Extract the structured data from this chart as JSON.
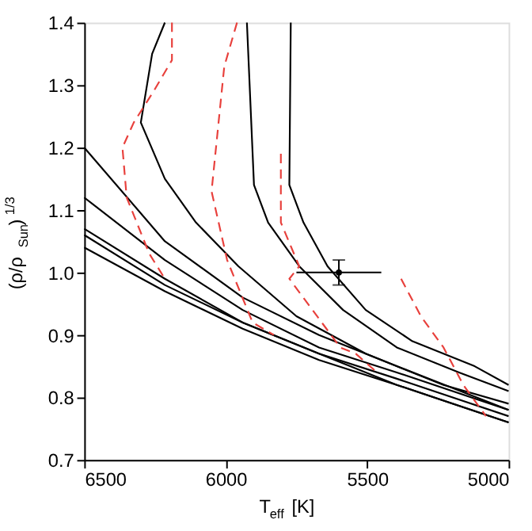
{
  "chart_data": {
    "type": "line",
    "xlabel": "T$_{eff}$ [K]",
    "ylabel": "(ρ/ρ$_{Sun}$)$^{1/3}$",
    "xlim": [
      6500,
      5000
    ],
    "ylim": [
      0.7,
      1.4
    ],
    "xticks": [
      6500,
      6000,
      5500,
      5000
    ],
    "yticks": [
      0.7,
      0.8,
      0.9,
      {
        "value": 1.0,
        "label": "1.0"
      },
      1.1,
      1.2,
      1.3,
      1.4
    ],
    "grid": false,
    "series": [
      {
        "color": "#000000",
        "line_style": "solid",
        "x": [
          6215,
          6260,
          6300,
          6215,
          6105,
          5955,
          5750,
          5505,
          5230,
          5000
        ],
        "values": [
          1.4,
          1.35,
          1.24,
          1.15,
          1.08,
          1.01,
          0.93,
          0.87,
          0.82,
          0.79
        ]
      },
      {
        "color": "#000000",
        "line_style": "solid",
        "x": [
          5925,
          5900,
          5850,
          5740,
          5585,
          5395,
          5175,
          5000
        ],
        "values": [
          1.4,
          1.14,
          1.08,
          1.01,
          0.94,
          0.88,
          0.84,
          0.81
        ]
      },
      {
        "color": "#000000",
        "line_style": "solid",
        "x": [
          5770,
          5775,
          5725,
          5640,
          5505,
          5340,
          5120,
          5000
        ],
        "values": [
          1.4,
          1.14,
          1.08,
          1.01,
          0.94,
          0.89,
          0.85,
          0.82
        ]
      },
      {
        "color": "#000000",
        "line_style": "solid",
        "x": [
          6500,
          6215,
          5940,
          5670,
          5395,
          5000
        ],
        "values": [
          1.2,
          1.05,
          0.96,
          0.9,
          0.85,
          0.78
        ]
      },
      {
        "color": "#000000",
        "line_style": "solid",
        "x": [
          6500,
          6215,
          5940,
          5670,
          5395,
          5000
        ],
        "values": [
          1.12,
          1.02,
          0.94,
          0.88,
          0.84,
          0.78
        ]
      },
      {
        "color": "#000000",
        "line_style": "solid",
        "x": [
          6500,
          6215,
          5940,
          5670,
          5395,
          5000
        ],
        "values": [
          1.07,
          0.99,
          0.92,
          0.87,
          0.83,
          0.77
        ]
      },
      {
        "color": "#000000",
        "line_style": "solid",
        "x": [
          6500,
          6215,
          5940,
          5670,
          5395,
          5000
        ],
        "values": [
          1.06,
          0.98,
          0.92,
          0.87,
          0.82,
          0.76
        ]
      },
      {
        "color": "#000000",
        "line_style": "solid",
        "x": [
          6500,
          6215,
          5940,
          5670,
          5395,
          5000
        ],
        "values": [
          1.04,
          0.97,
          0.91,
          0.86,
          0.82,
          0.76
        ]
      },
      {
        "color": "#e8403c",
        "line_style": "dashed",
        "x": [
          6190,
          6190,
          6255,
          6325,
          6365,
          6350,
          6270,
          6215
        ],
        "values": [
          1.4,
          1.34,
          1.29,
          1.24,
          1.2,
          1.12,
          1.03,
          0.99
        ]
      },
      {
        "color": "#e8403c",
        "line_style": "dashed",
        "x": [
          5960,
          6005,
          6050,
          5995,
          5905,
          5830
        ],
        "values": [
          1.4,
          1.33,
          1.13,
          1.02,
          0.92,
          0.9
        ]
      },
      {
        "color": "#e8403c",
        "line_style": "dashed",
        "x": [
          5805,
          5805,
          5740,
          5775,
          5595,
          5540,
          5465
        ],
        "values": [
          1.19,
          1.08,
          1.01,
          0.99,
          0.88,
          0.87,
          0.84
        ]
      },
      {
        "color": "#e8403c",
        "line_style": "dashed",
        "x": [
          5380,
          5310,
          5230,
          5160,
          5080
        ],
        "values": [
          0.99,
          0.93,
          0.88,
          0.82,
          0.77
        ]
      },
      {
        "type": "scatter",
        "marker": "circle",
        "color": "#000000",
        "x": [
          5600
        ],
        "values": [
          1.0
        ],
        "errors": [
          0.02
        ],
        "xerrors": [
          150
        ]
      }
    ]
  }
}
